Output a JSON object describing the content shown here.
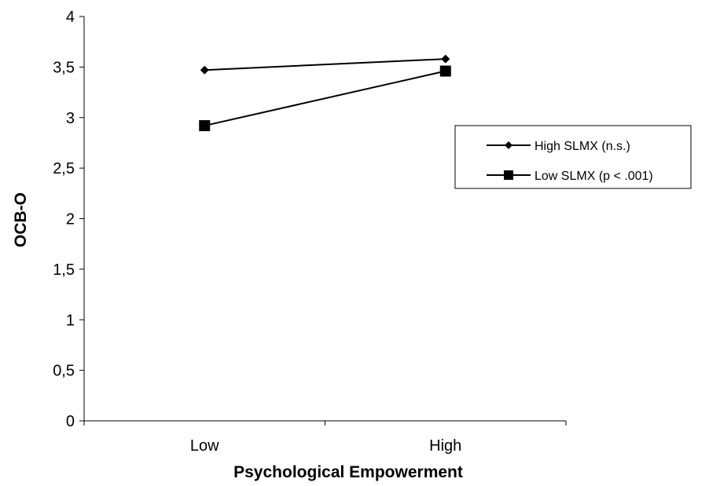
{
  "chart_data": {
    "type": "line",
    "categories": [
      "Low",
      "High"
    ],
    "series": [
      {
        "name": "High SLMX (n.s.)",
        "marker": "diamond",
        "values": [
          3.47,
          3.58
        ]
      },
      {
        "name": "Low SLMX (p < .001)",
        "marker": "square",
        "values": [
          2.92,
          3.46
        ]
      }
    ],
    "xlabel": "Psychological Empowerment",
    "ylabel": "OCB-O",
    "ylim": [
      0,
      4
    ],
    "yticks": [
      0,
      0.5,
      1,
      1.5,
      2,
      2.5,
      3,
      3.5,
      4
    ],
    "ytick_labels": [
      "0",
      "0,5",
      "1",
      "1,5",
      "2",
      "2,5",
      "3",
      "3,5",
      "4"
    ],
    "legend_position": "right",
    "grid": false,
    "line_color": "#000000"
  }
}
